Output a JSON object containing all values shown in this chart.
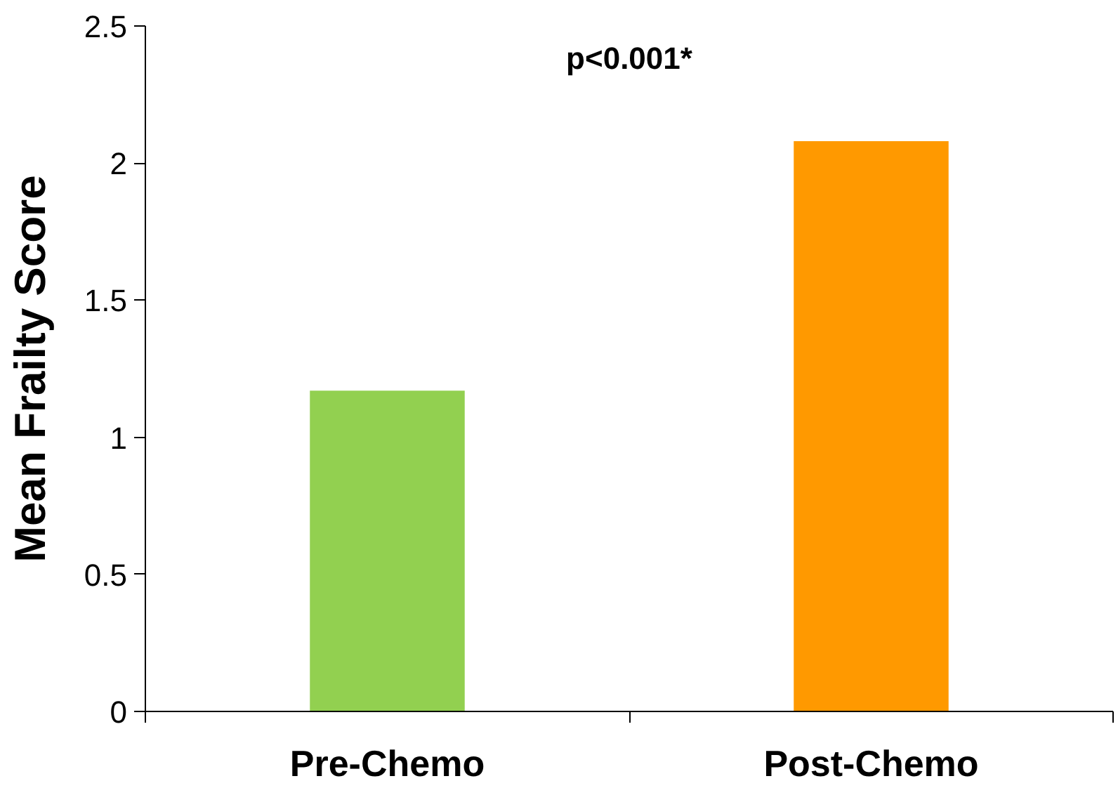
{
  "chart_data": {
    "type": "bar",
    "categories": [
      "Pre-Chemo",
      "Post-Chemo"
    ],
    "values": [
      1.17,
      2.08
    ],
    "colors": [
      "#92d050",
      "#ff9900"
    ],
    "ylabel": "Mean Frailty Score",
    "ylim": [
      0,
      2.5
    ],
    "yticks": [
      0,
      0.5,
      1,
      1.5,
      2,
      2.5
    ],
    "grid": false,
    "annotations": [
      "p<0.001*"
    ]
  }
}
